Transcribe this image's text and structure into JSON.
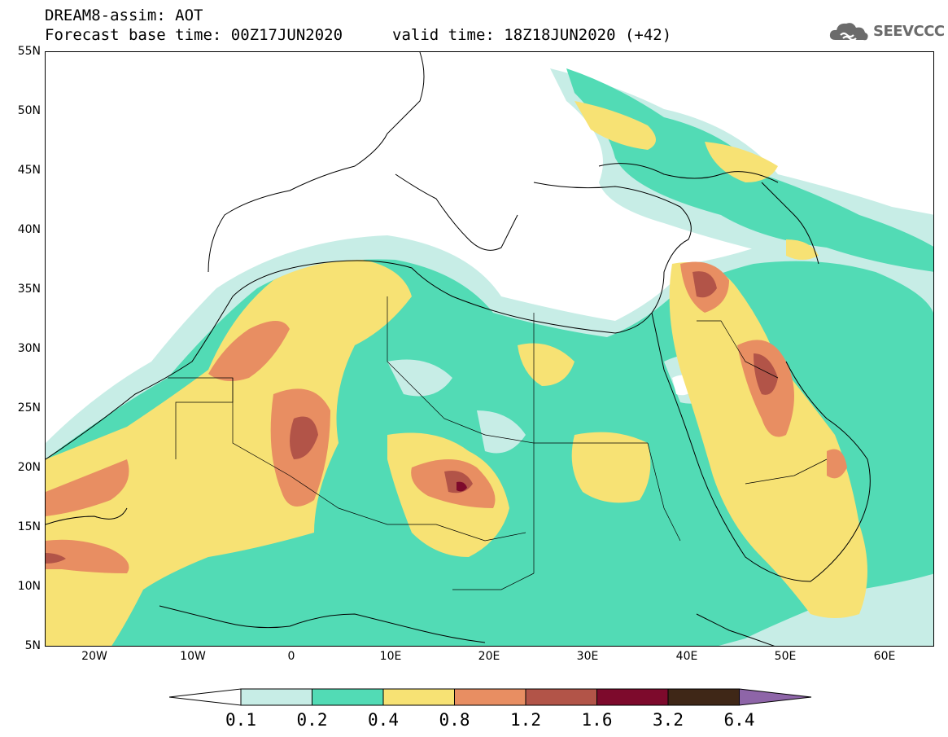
{
  "header": {
    "title_line1": "DREAM8-assim: AOT",
    "base_time": "Forecast base time: 00Z17JUN2020",
    "valid_time": "valid time: 18Z18JUN2020 (+42)"
  },
  "logo": {
    "text": "SEEVCCC",
    "icon": "cloud-logo-icon"
  },
  "map": {
    "lat_labels": [
      "55N",
      "50N",
      "45N",
      "40N",
      "35N",
      "30N",
      "25N",
      "20N",
      "15N",
      "10N",
      "5N"
    ],
    "lon_labels": [
      "20W",
      "10W",
      "0",
      "10E",
      "20E",
      "30E",
      "40E",
      "50E",
      "60E"
    ],
    "lon_range": [
      -25,
      65
    ],
    "lat_range": [
      5,
      55
    ]
  },
  "legend": {
    "levels": [
      "0.1",
      "0.2",
      "0.4",
      "0.8",
      "1.2",
      "1.6",
      "3.2",
      "6.4"
    ],
    "colors": [
      "#ffffff",
      "#c7ede6",
      "#52dbb5",
      "#f7e274",
      "#e88e62",
      "#b25448",
      "#7d0a2c",
      "#3f2717",
      "#8e65a8"
    ]
  }
}
